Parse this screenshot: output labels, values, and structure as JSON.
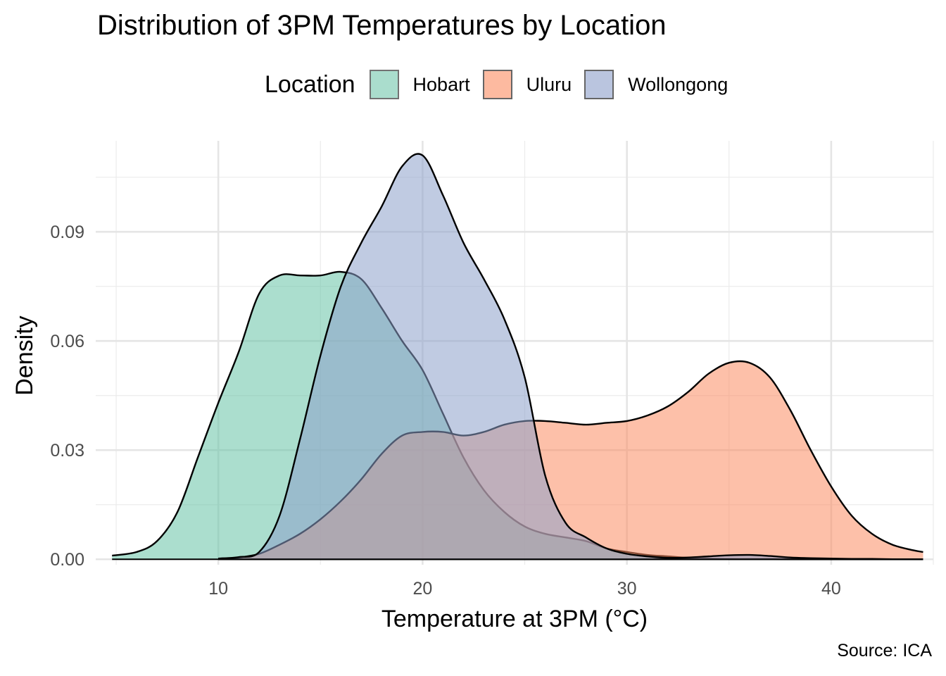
{
  "chart_data": {
    "type": "area",
    "title": "Distribution of 3PM Temperatures by Location",
    "xlabel": "Temperature at 3PM (°C)",
    "ylabel": "Density",
    "caption": "Source: ICA",
    "legend_title": "Location",
    "legend_position": "top",
    "grid": true,
    "xlim": [
      4,
      45
    ],
    "ylim": [
      -0.0015,
      0.115
    ],
    "x_ticks": [
      10,
      20,
      30,
      40
    ],
    "x_tick_labels": [
      "10",
      "20",
      "30",
      "40"
    ],
    "y_ticks": [
      0.0,
      0.03,
      0.06,
      0.09
    ],
    "y_tick_labels": [
      "0.00",
      "0.03",
      "0.06",
      "0.09"
    ],
    "series": [
      {
        "name": "Hobart",
        "color": "#66C2A5",
        "x": [
          4.8,
          6,
          7,
          8,
          9,
          10,
          11,
          12,
          13,
          14,
          15,
          16,
          17,
          18,
          19,
          20,
          21,
          22,
          23,
          24,
          25,
          26,
          27,
          28,
          29,
          30,
          31,
          32,
          33,
          34,
          35,
          36,
          37,
          38,
          39,
          40,
          41,
          42,
          43,
          44,
          44.5
        ],
        "y": [
          0.001,
          0.002,
          0.005,
          0.013,
          0.028,
          0.043,
          0.057,
          0.073,
          0.078,
          0.078,
          0.078,
          0.079,
          0.077,
          0.069,
          0.06,
          0.052,
          0.04,
          0.028,
          0.019,
          0.013,
          0.009,
          0.007,
          0.006,
          0.005,
          0.003,
          0.002,
          0.0012,
          0.0008,
          0.0004,
          0.0002,
          0.0001,
          0.0001,
          0.0001,
          0.0,
          0.0,
          0.0,
          0.0,
          0.0,
          0.0,
          0.0,
          0.0
        ]
      },
      {
        "name": "Uluru",
        "color": "#FC8D62",
        "x": [
          10,
          11,
          12,
          13,
          14,
          15,
          16,
          17,
          18,
          19,
          20,
          21,
          22,
          23,
          24,
          25,
          26,
          27,
          28,
          29,
          30,
          31,
          32,
          33,
          34,
          35,
          36,
          37,
          38,
          39,
          40,
          41,
          42,
          43,
          44,
          44.5
        ],
        "y": [
          0.0002,
          0.0005,
          0.0015,
          0.004,
          0.007,
          0.011,
          0.016,
          0.022,
          0.029,
          0.034,
          0.035,
          0.035,
          0.034,
          0.035,
          0.037,
          0.038,
          0.038,
          0.0375,
          0.037,
          0.0375,
          0.038,
          0.0395,
          0.042,
          0.046,
          0.051,
          0.054,
          0.054,
          0.05,
          0.041,
          0.03,
          0.02,
          0.012,
          0.007,
          0.004,
          0.0025,
          0.002
        ]
      },
      {
        "name": "Wollongong",
        "color": "#8DA0CB",
        "x": [
          10,
          11,
          12,
          13,
          14,
          15,
          16,
          17,
          18,
          19,
          20,
          21,
          22,
          23,
          24,
          25,
          26,
          27,
          28,
          29,
          30,
          31,
          32,
          33,
          34,
          35,
          36,
          37,
          38,
          39,
          40,
          41,
          42,
          43,
          44,
          44.5
        ],
        "y": [
          0.0002,
          0.0006,
          0.002,
          0.012,
          0.033,
          0.056,
          0.075,
          0.087,
          0.097,
          0.108,
          0.111,
          0.1,
          0.087,
          0.077,
          0.066,
          0.05,
          0.023,
          0.01,
          0.006,
          0.003,
          0.0015,
          0.0008,
          0.0004,
          0.0005,
          0.0008,
          0.0011,
          0.0012,
          0.0009,
          0.0005,
          0.0003,
          0.0002,
          0.0001,
          0.0001,
          0.0,
          0.0,
          0.0
        ]
      }
    ]
  }
}
